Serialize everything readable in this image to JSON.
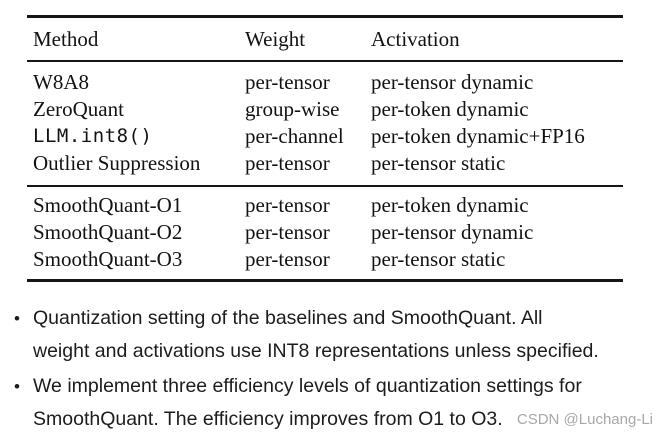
{
  "table": {
    "headers": {
      "method": "Method",
      "weight": "Weight",
      "activation": "Activation"
    },
    "baseline_rows": [
      {
        "method": "W8A8",
        "weight": "per-tensor",
        "activation": "per-tensor dynamic"
      },
      {
        "method": "ZeroQuant",
        "weight": "group-wise",
        "activation": "per-token dynamic"
      },
      {
        "method": "LLM.int8()",
        "weight": "per-channel",
        "activation": "per-token dynamic+FP16"
      },
      {
        "method": "Outlier Suppression",
        "weight": "per-tensor",
        "activation": "per-tensor static"
      }
    ],
    "smoothquant_rows": [
      {
        "method": "SmoothQuant-O1",
        "weight": "per-tensor",
        "activation": "per-token dynamic"
      },
      {
        "method": "SmoothQuant-O2",
        "weight": "per-tensor",
        "activation": "per-tensor dynamic"
      },
      {
        "method": "SmoothQuant-O3",
        "weight": "per-tensor",
        "activation": "per-tensor static"
      }
    ]
  },
  "bullets": [
    {
      "marker": "•",
      "lines": [
        "Quantization setting of the baselines and SmoothQuant. All",
        "weight and activations use INT8 representations unless specified."
      ]
    },
    {
      "marker": "•",
      "lines": [
        "We implement three efficiency levels of quantization settings for",
        "SmoothQuant. The efficiency improves from O1 to O3."
      ]
    }
  ],
  "watermark": "CSDN @Luchang-Li",
  "colors": {
    "text": "#121212",
    "bullet_text": "#1c1c1c",
    "watermark": "#a8a8a8",
    "background": "#ffffff",
    "rule": "#161616"
  }
}
